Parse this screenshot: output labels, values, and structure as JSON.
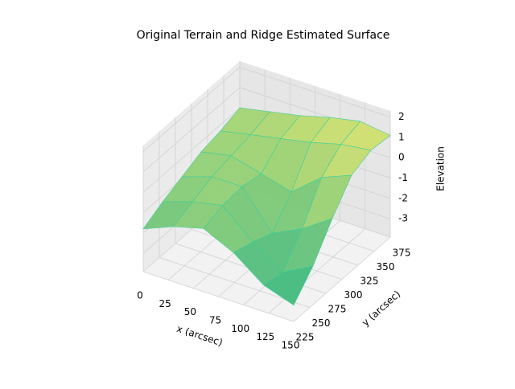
{
  "chart_data": {
    "type": "surface3d",
    "title": "Original Terrain and Ridge Estimated Surface",
    "x_label": "x (arcsec)",
    "y_label": "y (arcsec)",
    "z_label": "Elevation",
    "x": [
      0,
      30,
      60,
      90,
      120,
      150
    ],
    "y": [
      225,
      255,
      285,
      315,
      345,
      375
    ],
    "z": [
      [
        -1.8,
        -1.2,
        -0.8,
        -1.5,
        -2.6,
        -3.1
      ],
      [
        -1.3,
        -0.8,
        -0.5,
        -1.8,
        -2.8,
        -2.0
      ],
      [
        -0.9,
        -0.4,
        -0.4,
        -2.2,
        -1.5,
        -0.5
      ],
      [
        -0.5,
        -0.2,
        -0.6,
        -1.0,
        0.2,
        0.8
      ],
      [
        -0.3,
        0.0,
        0.3,
        0.6,
        1.0,
        1.2
      ],
      [
        0.0,
        0.3,
        0.6,
        1.0,
        1.3,
        1.1
      ]
    ],
    "colors": [
      "#2fb47c",
      "#d8e36a"
    ],
    "xlim": [
      0,
      150
    ],
    "ylim": [
      225,
      375
    ],
    "zlim": [
      -3.9,
      2.3
    ],
    "xticks": [
      0,
      25,
      50,
      75,
      100,
      125,
      150
    ],
    "yticks": [
      225,
      250,
      275,
      300,
      325,
      350,
      375
    ],
    "zticks": [
      -3,
      -2,
      -1,
      0,
      1,
      2
    ],
    "grid": true
  }
}
